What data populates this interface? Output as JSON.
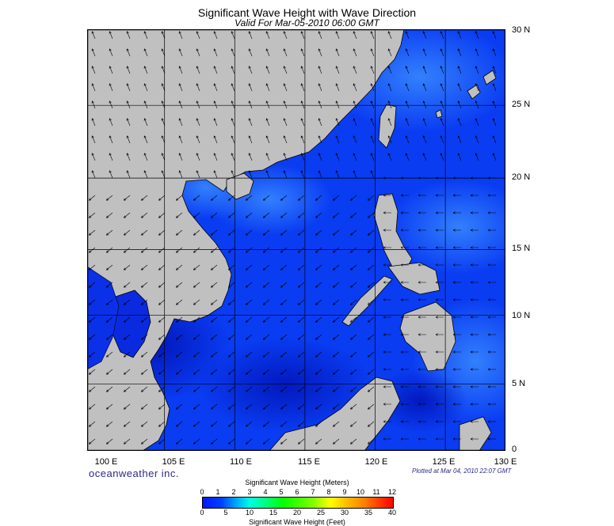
{
  "header": {
    "title": "Significant Wave Height with Wave Direction",
    "subtitle": "Valid For Mar-05-2010 06:00 GMT"
  },
  "latitude_labels": [
    "30 N",
    "25 N",
    "20 N",
    "15 N",
    "10 N",
    "5 N",
    "0"
  ],
  "longitude_labels": [
    "100 E",
    "105 E",
    "110 E",
    "115 E",
    "120 E",
    "125 E",
    "130 E"
  ],
  "footer": {
    "brand": "oceanweather inc.",
    "plotted": "Plotted at Mar 04, 2010 22:07 GMT"
  },
  "legend": {
    "title_meters": "Significant Wave Height (Meters)",
    "title_feet": "Significant Wave Height (Feet)",
    "meters_ticks": [
      "0",
      "1",
      "2",
      "3",
      "4",
      "5",
      "6",
      "7",
      "8",
      "9",
      "10",
      "11",
      "12"
    ],
    "feet_ticks": [
      "0",
      "5",
      "10",
      "15",
      "20",
      "25",
      "30",
      "35",
      "40"
    ]
  },
  "colors": {
    "land": "#c0c0c0",
    "sea_base": "#0a3cf2",
    "sea_calm": "#0a1ad0",
    "sea_high": "#2a7cff",
    "arrow": "#000000"
  }
}
